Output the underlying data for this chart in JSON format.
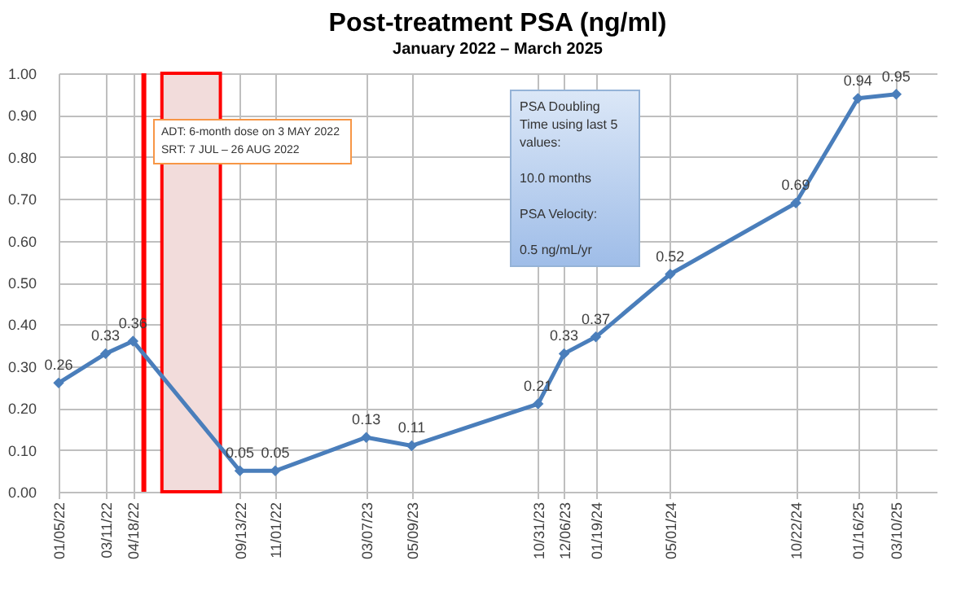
{
  "chart_data": {
    "type": "line",
    "title": "Post-treatment PSA (ng/ml)",
    "subtitle": "January 2022 – March 2025",
    "x": [
      "2022-01-05",
      "2022-03-11",
      "2022-04-18",
      "2022-09-13",
      "2022-11-01",
      "2023-03-07",
      "2023-05-09",
      "2023-10-31",
      "2023-12-06",
      "2024-01-19",
      "2024-05-01",
      "2024-10-22",
      "2025-01-16",
      "2025-03-10"
    ],
    "series": [
      {
        "color": "#4a7ebb",
        "values": [
          0.26,
          0.33,
          0.36,
          0.05,
          0.05,
          0.13,
          0.11,
          0.21,
          0.33,
          0.37,
          0.52,
          0.69,
          0.94,
          0.95
        ]
      }
    ],
    "xlim": [
      "2022-01-05",
      "2025-05-05"
    ],
    "xticks": [
      {
        "value": "2022-01-05",
        "label": "01/05/22"
      },
      {
        "value": "2022-03-11",
        "label": "03/11/22"
      },
      {
        "value": "2022-04-18",
        "label": "04/18/22"
      },
      {
        "value": "2022-09-13",
        "label": "09/13/22"
      },
      {
        "value": "2022-11-01",
        "label": "11/01/22"
      },
      {
        "value": "2023-03-07",
        "label": "03/07/23"
      },
      {
        "value": "2023-05-09",
        "label": "05/09/23"
      },
      {
        "value": "2023-10-31",
        "label": "10/31/23"
      },
      {
        "value": "2023-12-06",
        "label": "12/06/23"
      },
      {
        "value": "2024-01-19",
        "label": "01/19/24"
      },
      {
        "value": "2024-05-01",
        "label": "05/01/24"
      },
      {
        "value": "2024-10-22",
        "label": "10/22/24"
      },
      {
        "value": "2025-01-16",
        "label": "01/16/25"
      },
      {
        "value": "2025-03-10",
        "label": "03/10/25"
      }
    ],
    "ylim": [
      0,
      1
    ],
    "yticks": [
      {
        "value": 0,
        "label": "0.00"
      },
      {
        "value": 0.1,
        "label": "0.10"
      },
      {
        "value": 0.2,
        "label": "0.20"
      },
      {
        "value": 0.3,
        "label": "0.30"
      },
      {
        "value": 0.4,
        "label": "0.40"
      },
      {
        "value": 0.5,
        "label": "0.50"
      },
      {
        "value": 0.6,
        "label": "0.60"
      },
      {
        "value": 0.7,
        "label": "0.70"
      },
      {
        "value": 0.8,
        "label": "0.80"
      },
      {
        "value": 0.9,
        "label": "0.90"
      },
      {
        "value": 1,
        "label": "1.00"
      }
    ],
    "ref_lines": [
      {
        "axis": "x",
        "value": "2022-05-03",
        "color": "#ff0000"
      }
    ],
    "bands": [
      {
        "axis": "x",
        "from": "2022-05-28",
        "to": "2022-08-17",
        "color": "#f2dcdb"
      }
    ],
    "annotations": [
      "ADT: 6-month dose on 3 MAY 2022\nSRT: 7 JUL – 26 AUG 2022",
      "PSA Doubling Time using last 5 values:\n\n   10.0 months\n\nPSA Velocity:\n\n   0.5 ng/mL/yr"
    ],
    "data_labels": true,
    "marker": "diamond",
    "grid": true,
    "line_style": "solid"
  }
}
